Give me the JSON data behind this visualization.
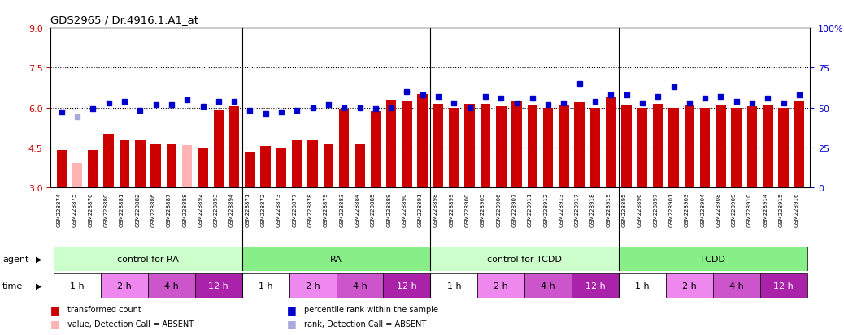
{
  "title": "GDS2965 / Dr.4916.1.A1_at",
  "samples": [
    "GSM228874",
    "GSM228875",
    "GSM228876",
    "GSM228880",
    "GSM228881",
    "GSM228882",
    "GSM228886",
    "GSM228887",
    "GSM228888",
    "GSM228892",
    "GSM228893",
    "GSM228894",
    "GSM228871",
    "GSM228872",
    "GSM228873",
    "GSM228877",
    "GSM228878",
    "GSM228879",
    "GSM228883",
    "GSM228884",
    "GSM228885",
    "GSM228889",
    "GSM228890",
    "GSM228891",
    "GSM228898",
    "GSM228899",
    "GSM228900",
    "GSM228905",
    "GSM228906",
    "GSM228907",
    "GSM228911",
    "GSM228912",
    "GSM228913",
    "GSM228917",
    "GSM228918",
    "GSM228919",
    "GSM228895",
    "GSM228896",
    "GSM228897",
    "GSM228901",
    "GSM228903",
    "GSM228904",
    "GSM228908",
    "GSM228909",
    "GSM228910",
    "GSM228914",
    "GSM228915",
    "GSM228916"
  ],
  "bar_values": [
    4.4,
    3.9,
    4.4,
    5.0,
    4.8,
    4.8,
    4.6,
    4.6,
    4.58,
    4.5,
    5.9,
    6.05,
    4.3,
    4.55,
    4.5,
    4.8,
    4.8,
    4.6,
    5.95,
    4.6,
    5.85,
    6.3,
    6.25,
    6.5,
    6.15,
    6.0,
    6.15,
    6.15,
    6.05,
    6.25,
    6.1,
    6.0,
    6.1,
    6.2,
    6.0,
    6.4,
    6.1,
    6.0,
    6.15,
    6.0,
    6.1,
    6.0,
    6.1,
    6.0,
    6.05,
    6.1,
    6.0,
    6.25
  ],
  "rank_values_pct": [
    47,
    44,
    49,
    53,
    54,
    48,
    52,
    52,
    55,
    51,
    54,
    54,
    48,
    46,
    47,
    48,
    50,
    52,
    50,
    50,
    49,
    50,
    60,
    58,
    57,
    53,
    50,
    57,
    56,
    53,
    56,
    52,
    53,
    65,
    54,
    58,
    58,
    53,
    57,
    63,
    53,
    56,
    57,
    54,
    53,
    56,
    53,
    58
  ],
  "absent_bar": [
    false,
    true,
    false,
    false,
    false,
    false,
    false,
    false,
    true,
    false,
    false,
    false,
    false,
    false,
    false,
    false,
    false,
    false,
    false,
    false,
    false,
    false,
    false,
    false,
    false,
    false,
    false,
    false,
    false,
    false,
    false,
    false,
    false,
    false,
    false,
    false,
    false,
    false,
    false,
    false,
    false,
    false,
    false,
    false,
    false,
    false,
    false,
    false
  ],
  "absent_rank": [
    false,
    true,
    false,
    false,
    false,
    false,
    false,
    false,
    false,
    false,
    false,
    false,
    false,
    false,
    false,
    false,
    false,
    false,
    false,
    false,
    false,
    false,
    false,
    false,
    false,
    false,
    false,
    false,
    false,
    false,
    false,
    false,
    false,
    false,
    false,
    false,
    false,
    false,
    false,
    false,
    false,
    false,
    false,
    false,
    false,
    false,
    false,
    false
  ],
  "ylim_left": [
    3.0,
    9.0
  ],
  "ylim_right": [
    0,
    100
  ],
  "yticks_left": [
    3,
    4.5,
    6,
    7.5,
    9
  ],
  "yticks_right": [
    0,
    25,
    50,
    75,
    100
  ],
  "hlines": [
    4.5,
    6.0,
    7.5
  ],
  "bar_color": "#cc0000",
  "bar_color_absent": "#ffb3b3",
  "rank_color": "#0000cc",
  "rank_color_absent": "#aaaadd",
  "agent_groups": [
    {
      "label": "control for RA",
      "start": 0,
      "end": 11,
      "color": "#ccffcc"
    },
    {
      "label": "RA",
      "start": 12,
      "end": 23,
      "color": "#88ee88"
    },
    {
      "label": "control for TCDD",
      "start": 24,
      "end": 35,
      "color": "#ccffcc"
    },
    {
      "label": "TCDD",
      "start": 36,
      "end": 47,
      "color": "#88ee88"
    }
  ],
  "time_groups": [
    {
      "label": "1 h",
      "start": 0,
      "end": 2,
      "color": "#ffffff",
      "text_color": "#000000"
    },
    {
      "label": "2 h",
      "start": 3,
      "end": 5,
      "color": "#ee88ee",
      "text_color": "#000000"
    },
    {
      "label": "4 h",
      "start": 6,
      "end": 8,
      "color": "#cc55cc",
      "text_color": "#000000"
    },
    {
      "label": "12 h",
      "start": 9,
      "end": 11,
      "color": "#aa22aa",
      "text_color": "#ffffff"
    },
    {
      "label": "1 h",
      "start": 12,
      "end": 14,
      "color": "#ffffff",
      "text_color": "#000000"
    },
    {
      "label": "2 h",
      "start": 15,
      "end": 17,
      "color": "#ee88ee",
      "text_color": "#000000"
    },
    {
      "label": "4 h",
      "start": 18,
      "end": 20,
      "color": "#cc55cc",
      "text_color": "#000000"
    },
    {
      "label": "12 h",
      "start": 21,
      "end": 23,
      "color": "#aa22aa",
      "text_color": "#ffffff"
    },
    {
      "label": "1 h",
      "start": 24,
      "end": 26,
      "color": "#ffffff",
      "text_color": "#000000"
    },
    {
      "label": "2 h",
      "start": 27,
      "end": 29,
      "color": "#ee88ee",
      "text_color": "#000000"
    },
    {
      "label": "4 h",
      "start": 30,
      "end": 32,
      "color": "#cc55cc",
      "text_color": "#000000"
    },
    {
      "label": "12 h",
      "start": 33,
      "end": 35,
      "color": "#aa22aa",
      "text_color": "#ffffff"
    },
    {
      "label": "1 h",
      "start": 36,
      "end": 38,
      "color": "#ffffff",
      "text_color": "#000000"
    },
    {
      "label": "2 h",
      "start": 39,
      "end": 41,
      "color": "#ee88ee",
      "text_color": "#000000"
    },
    {
      "label": "4 h",
      "start": 42,
      "end": 44,
      "color": "#cc55cc",
      "text_color": "#000000"
    },
    {
      "label": "12 h",
      "start": 45,
      "end": 47,
      "color": "#aa22aa",
      "text_color": "#ffffff"
    }
  ],
  "group_separators": [
    11.5,
    23.5,
    35.5
  ],
  "xtick_bg": "#d8d8d8",
  "legend_items": [
    {
      "label": "transformed count",
      "color": "#cc0000"
    },
    {
      "label": "percentile rank within the sample",
      "color": "#0000cc"
    },
    {
      "label": "value, Detection Call = ABSENT",
      "color": "#ffb3b3"
    },
    {
      "label": "rank, Detection Call = ABSENT",
      "color": "#aaaadd"
    }
  ],
  "fig_width": 10.38,
  "fig_height": 4.14,
  "dpi": 100
}
